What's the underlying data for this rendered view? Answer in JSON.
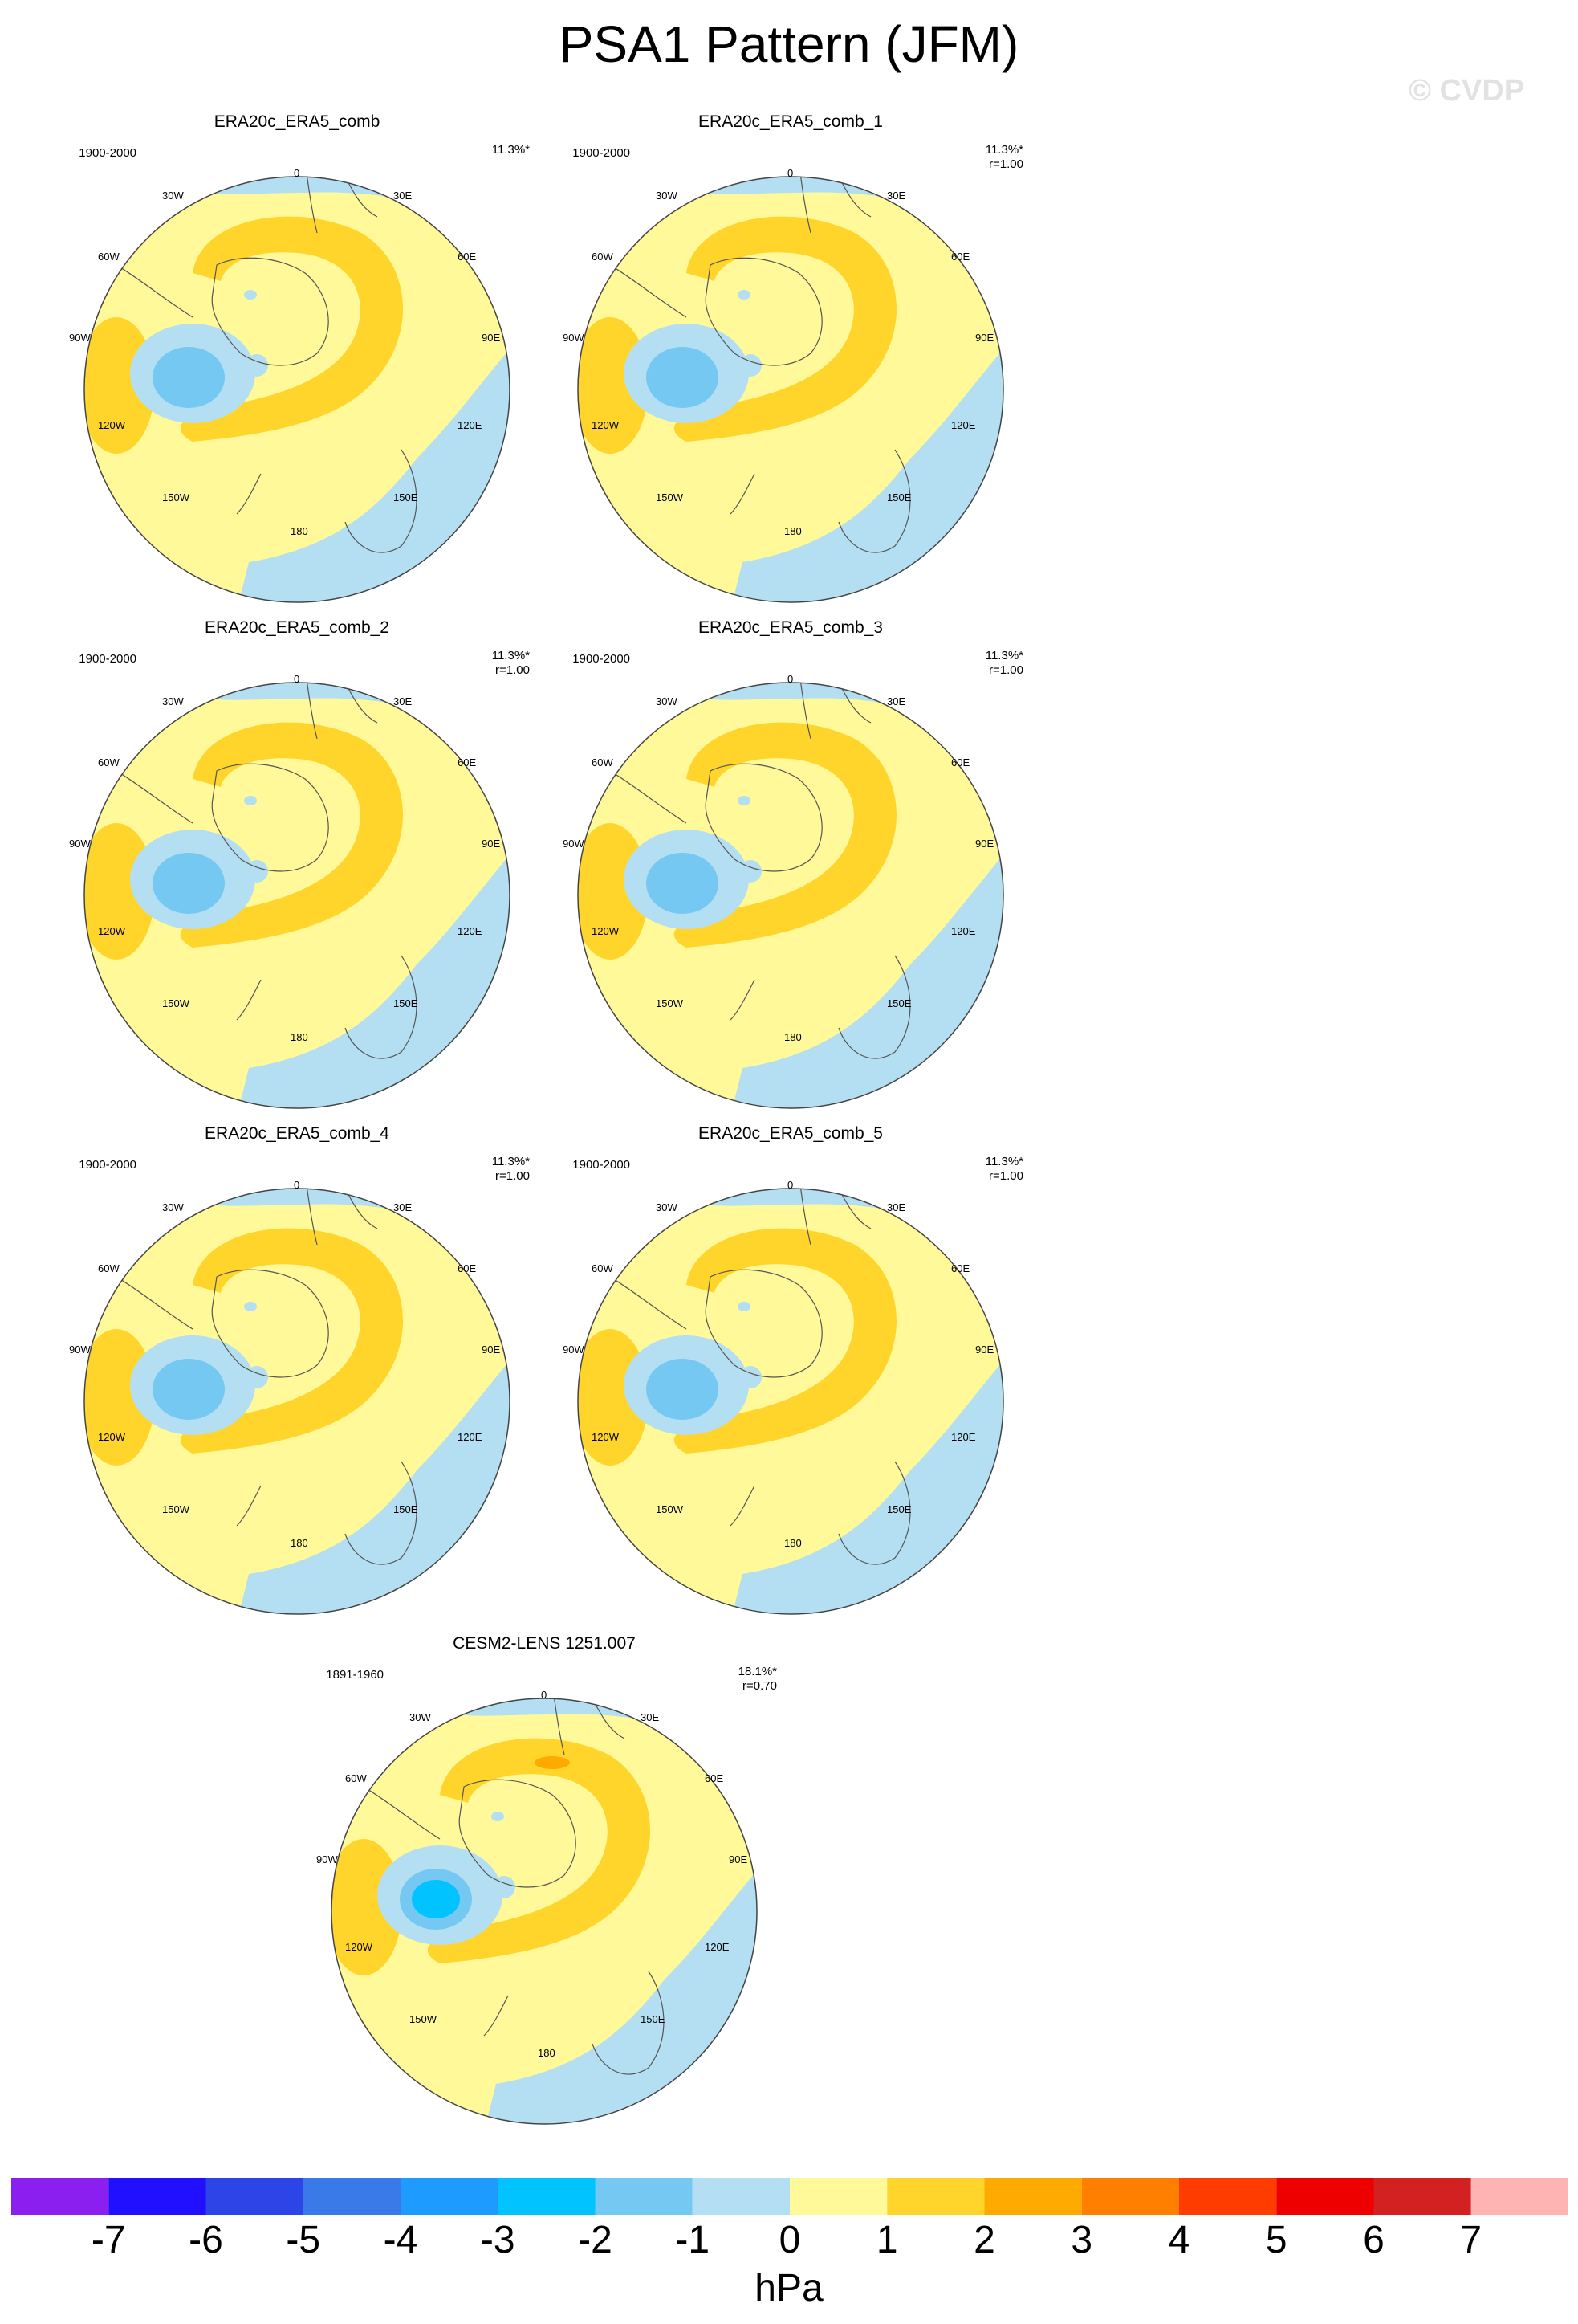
{
  "title": "PSA1 Pattern (JFM)",
  "watermark": "© CVDP",
  "panels": [
    {
      "title": "ERA20c_ERA5_comb",
      "period": "1900-2000",
      "pct": "11.3%*",
      "r": ""
    },
    {
      "title": "ERA20c_ERA5_comb_1",
      "period": "1900-2000",
      "pct": "11.3%*",
      "r": "r=1.00"
    },
    {
      "title": "ERA20c_ERA5_comb_2",
      "period": "1900-2000",
      "pct": "11.3%*",
      "r": "r=1.00"
    },
    {
      "title": "ERA20c_ERA5_comb_3",
      "period": "1900-2000",
      "pct": "11.3%*",
      "r": "r=1.00"
    },
    {
      "title": "ERA20c_ERA5_comb_4",
      "period": "1900-2000",
      "pct": "11.3%*",
      "r": "r=1.00"
    },
    {
      "title": "ERA20c_ERA5_comb_5",
      "period": "1900-2000",
      "pct": "11.3%*",
      "r": "r=1.00"
    },
    {
      "title": "CESM2-LENS 1251.007",
      "period": "1891-1960",
      "pct": "18.1%*",
      "r": "r=0.70"
    }
  ],
  "lon_labels": {
    "l0": "0",
    "l30e": "30E",
    "l60e": "60E",
    "l90e": "90E",
    "l120e": "120E",
    "l150e": "150E",
    "l180": "180",
    "l150w": "150W",
    "l120w": "120W",
    "l90w": "90W",
    "l60w": "60W",
    "l30w": "30W"
  },
  "colorbar": {
    "units": "hPa",
    "ticks": [
      "-7",
      "-6",
      "-5",
      "-4",
      "-3",
      "-2",
      "-1",
      "0",
      "1",
      "2",
      "3",
      "4",
      "5",
      "6",
      "7"
    ],
    "colors": [
      "#8b1ff0",
      "#2010ff",
      "#2d45e6",
      "#3a7ae8",
      "#1e9bff",
      "#00c3ff",
      "#74c8f2",
      "#b4dff2",
      "#fff999",
      "#ffd52c",
      "#ffaa00",
      "#ff7f00",
      "#ff3c00",
      "#ee0000",
      "#d32020",
      "#ffb4b4"
    ]
  }
}
